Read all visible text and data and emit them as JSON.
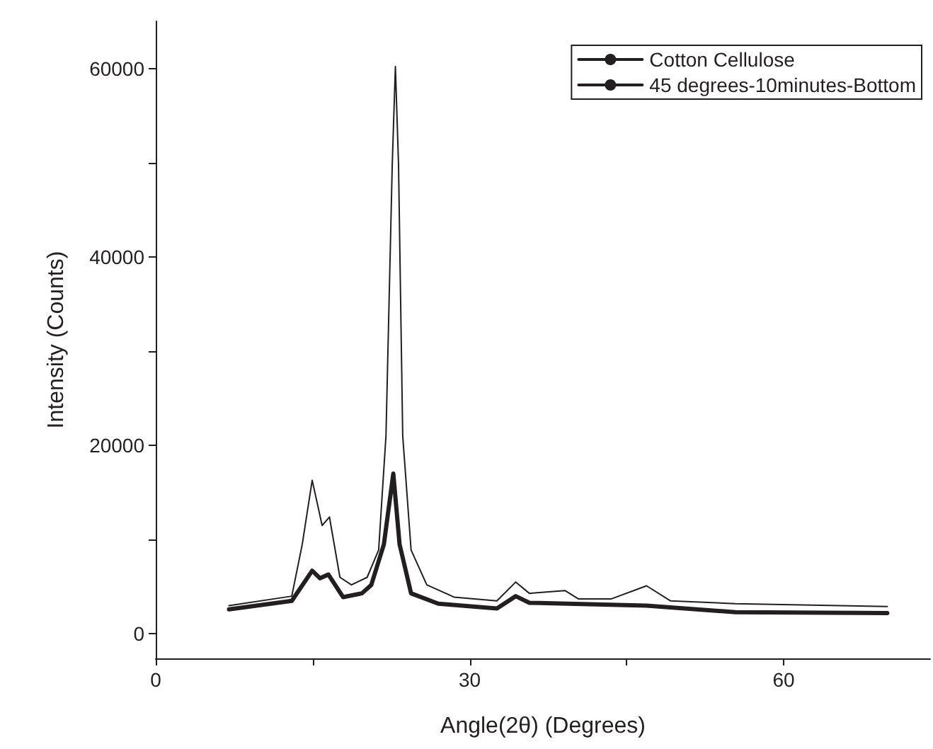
{
  "chart_data": {
    "type": "line",
    "xlabel": "Angle(2θ) (Degrees)",
    "ylabel": "Intensity (Counts)",
    "xlim": [
      0,
      74
    ],
    "xticks": [
      0,
      {
        "value": 15,
        "label": null
      },
      30,
      {
        "value": 45,
        "label": null
      },
      60
    ],
    "ylim": [
      -2600,
      65000
    ],
    "yticks": [
      0,
      {
        "value": 10000,
        "label": null
      },
      20000,
      {
        "value": 30000,
        "label": null
      },
      40000,
      {
        "value": 50000,
        "label": null
      },
      60000
    ],
    "grid": false,
    "legend": "top right",
    "marker": "none",
    "line_style": "solid",
    "series": [
      {
        "name": "Cotton Cellulose",
        "color": "#231f20",
        "x": [
          7,
          13,
          14.95,
          15.7,
          16.5,
          17.9,
          19.7,
          20.6,
          21.8,
          22.7,
          23.3,
          24.4,
          27,
          32.6,
          34.4,
          35.7,
          46.9,
          55.4,
          69.9
        ],
        "values": [
          2600,
          3500,
          6700,
          5900,
          6300,
          3900,
          4300,
          5200,
          9500,
          17000,
          9500,
          4300,
          3200,
          2700,
          4000,
          3300,
          3000,
          2300,
          2200
        ]
      },
      {
        "name": "45 degrees-10minutes-Bottom",
        "color": "#231f20",
        "x": [
          7,
          13,
          14,
          14.95,
          15.9,
          16.6,
          17.6,
          18.7,
          20.2,
          21.3,
          22,
          22.6,
          22.9,
          23.2,
          23.6,
          24.4,
          25.9,
          28.5,
          32.6,
          34.4,
          35.7,
          39.1,
          40.4,
          43.5,
          46.9,
          49.2,
          55.4,
          69.9
        ],
        "values": [
          3000,
          4000,
          9500,
          16300,
          11500,
          12400,
          6000,
          5200,
          6000,
          8900,
          21000,
          49800,
          60200,
          49800,
          21000,
          8900,
          5200,
          3900,
          3500,
          5500,
          4300,
          4600,
          3700,
          3700,
          5100,
          3500,
          3200,
          2900
        ]
      }
    ]
  }
}
